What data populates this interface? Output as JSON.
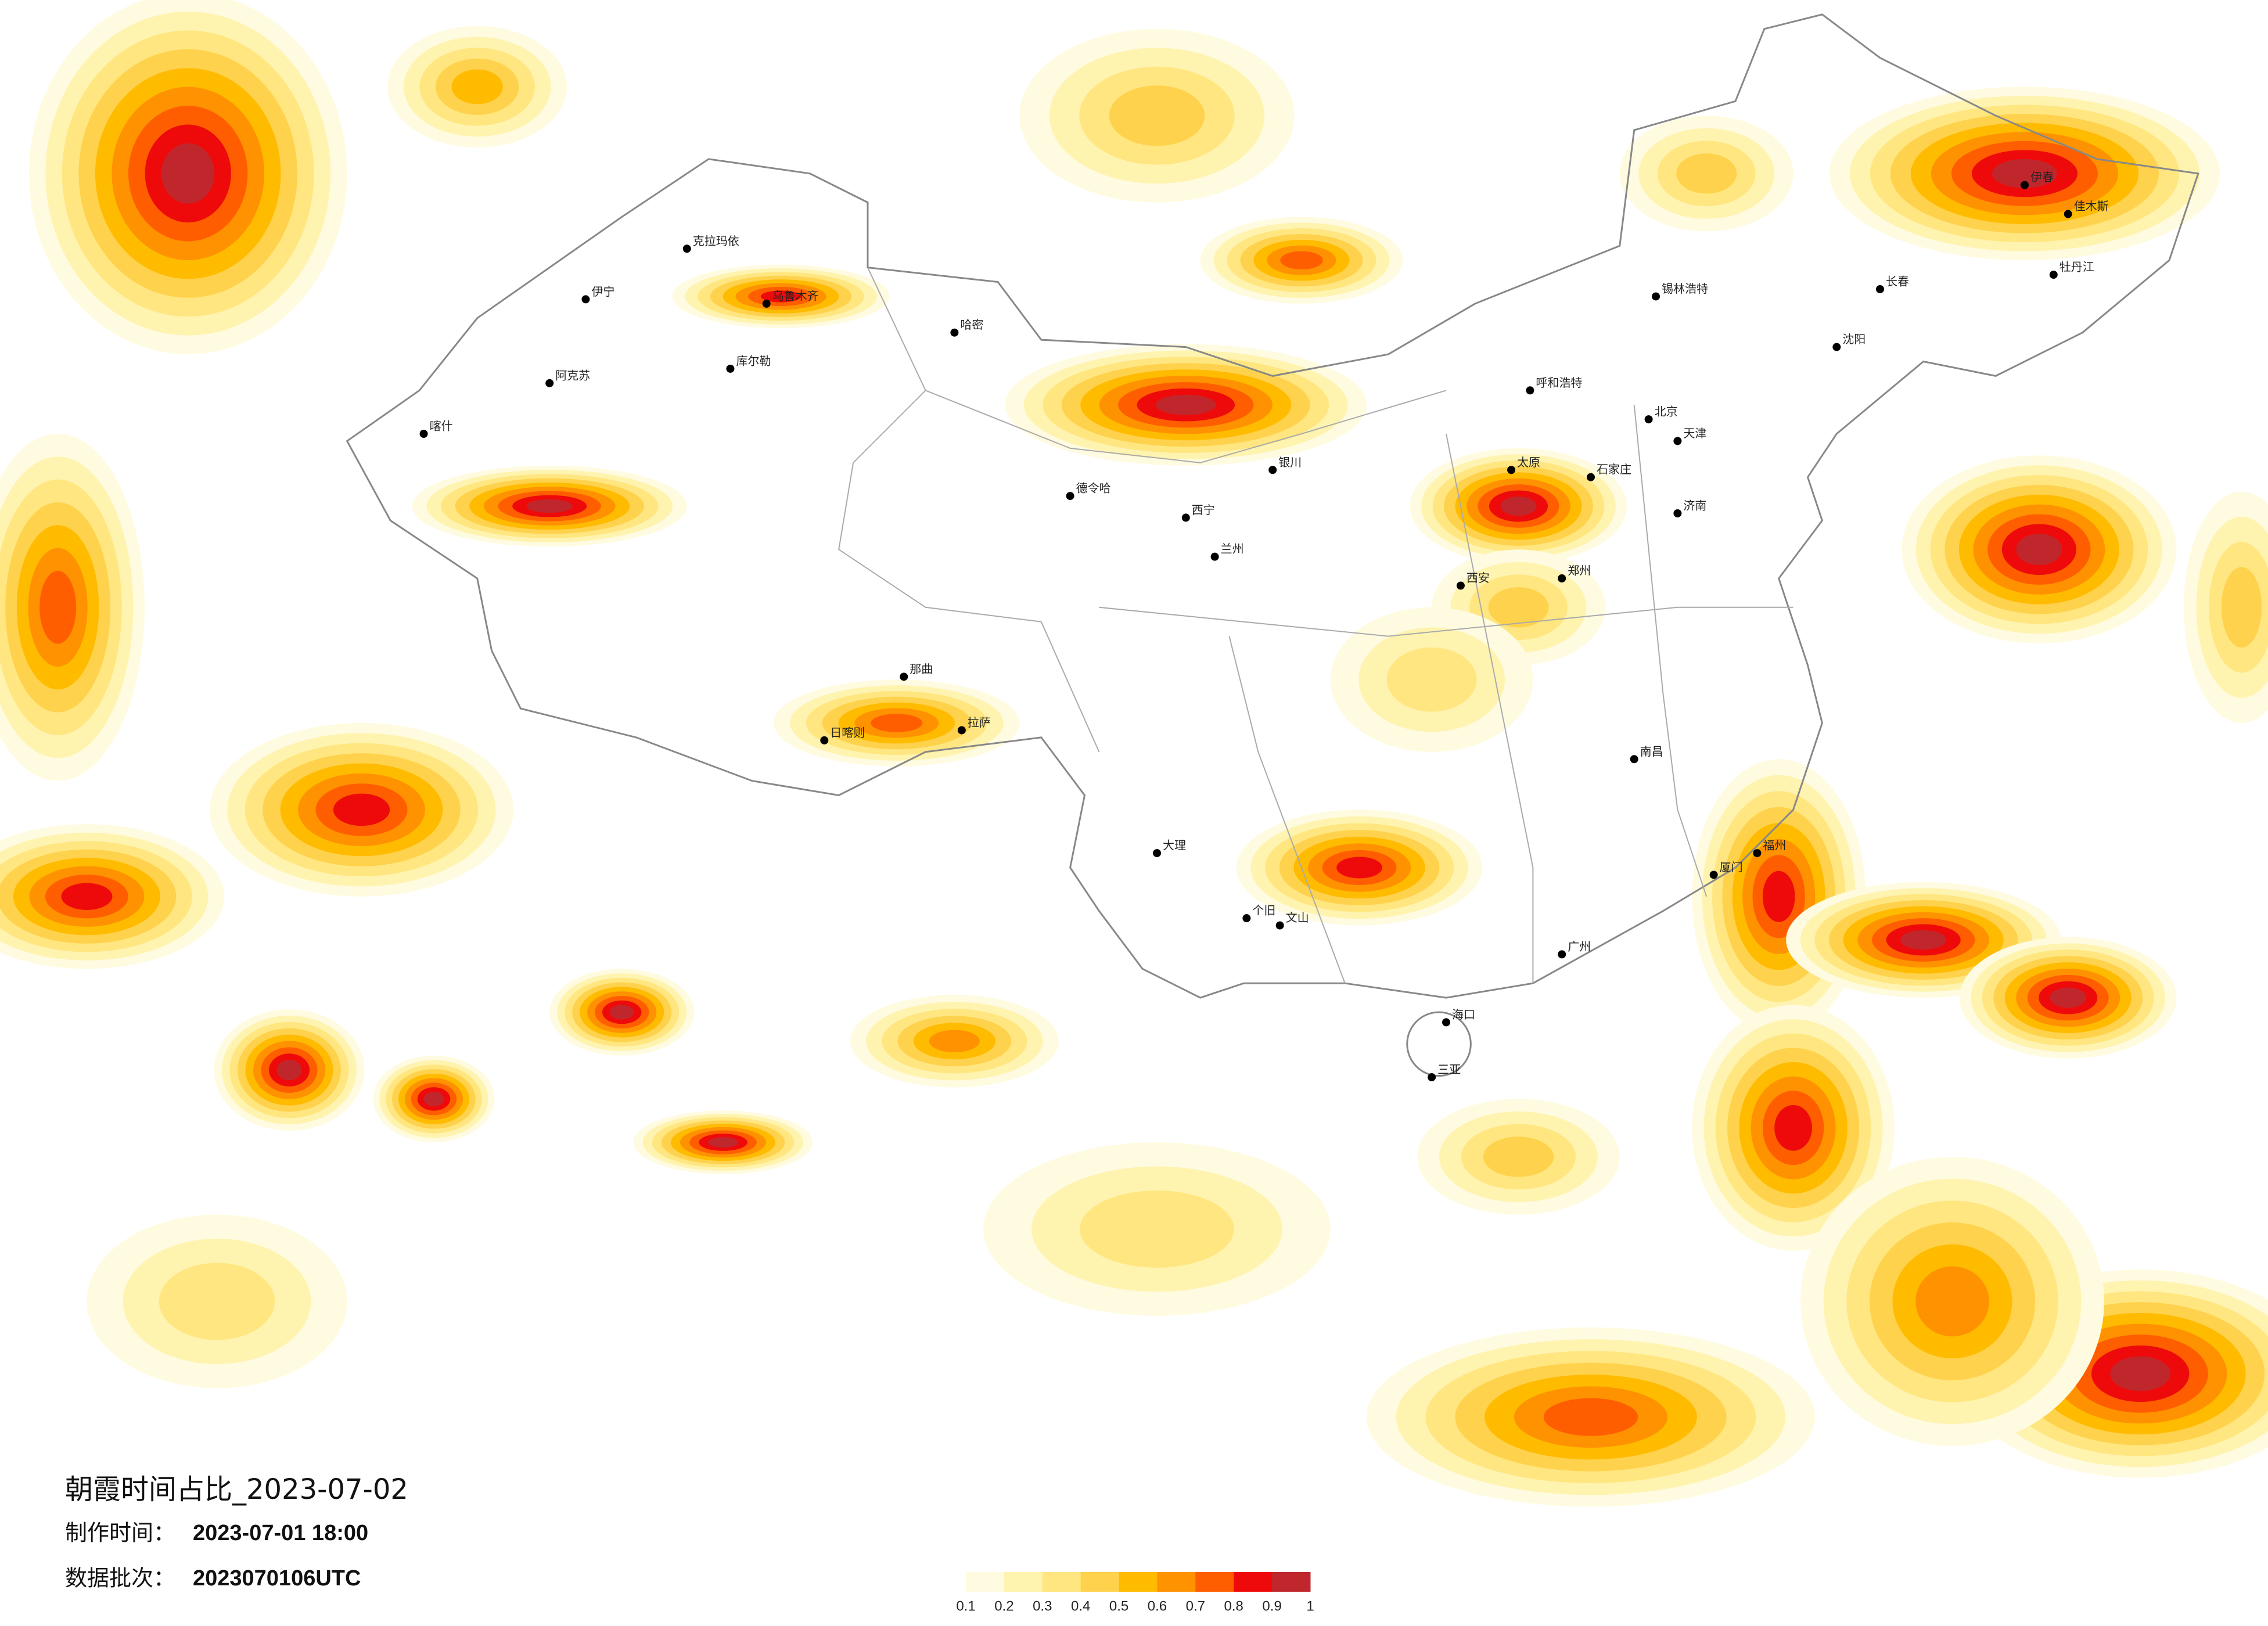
{
  "header": {
    "title": "朝霞时间占比_2023-07-02",
    "made_label": "制作时间：",
    "made_time": "2023-07-01 18:00",
    "batch_label": "数据批次：",
    "batch": "2023070106UTC"
  },
  "legend": {
    "colors": [
      "#fffbe0",
      "#fff3b0",
      "#ffe680",
      "#ffd24d",
      "#ffbb00",
      "#ff9200",
      "#ff5e00",
      "#ee0a0a",
      "#c0272d"
    ],
    "labels": [
      "0.1",
      "0.2",
      "0.3",
      "0.4",
      "0.5",
      "0.6",
      "0.7",
      "0.8",
      "0.9",
      "1"
    ]
  },
  "cities": [
    "克拉玛依",
    "伊宁",
    "乌鲁木齐",
    "哈密",
    "阿克苏",
    "喀什",
    "库尔勒",
    "德令哈",
    "西宁",
    "兰州",
    "银川",
    "呼和浩特",
    "锡林浩特",
    "北京",
    "天津",
    "石家庄",
    "济南",
    "郑州",
    "西安",
    "太原",
    "沈阳",
    "长春",
    "伊春",
    "佳木斯",
    "牡丹江",
    "南昌",
    "福州",
    "厦门",
    "广州",
    "海口",
    "三亚",
    "大理",
    "个旧",
    "文山",
    "日喀则",
    "拉萨",
    "那曲"
  ]
}
